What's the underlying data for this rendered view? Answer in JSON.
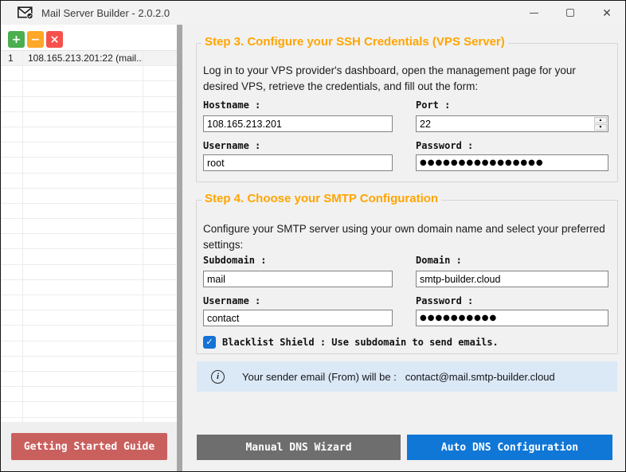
{
  "window": {
    "title": "Mail Server Builder - 2.0.2.0",
    "controls": {
      "minimize_glyph": "",
      "close_glyph": "✕"
    }
  },
  "server_list": {
    "toolbar": {
      "add_label": "+",
      "remove_label": "−",
      "delete_label": "×"
    },
    "selected_row": {
      "index": "1",
      "label": "108.165.213.201:22 (mail...."
    },
    "empty_row_count": 24
  },
  "guide_button_label": "Getting Started Guide",
  "step3": {
    "title": "Step 3. Configure your SSH Credentials (VPS Server)",
    "description": "Log in to your VPS provider's dashboard, open the management page for your desired VPS, retrieve the credentials, and fill out the form:",
    "hostname_label": "Hostname :",
    "hostname_value": "108.165.213.201",
    "port_label": "Port :",
    "port_value": "22",
    "username_label": "Username :",
    "username_value": "root",
    "password_label": "Password :",
    "password_masked": "●●●●●●●●●●●●●●●●",
    "spinner_up": "▲",
    "spinner_down": "▼"
  },
  "step4": {
    "title": "Step 4. Choose your SMTP Configuration",
    "description": "Configure your SMTP server using your own domain name and select your preferred settings:",
    "subdomain_label": "Subdomain :",
    "subdomain_value": "mail",
    "domain_label": "Domain :",
    "domain_value": "smtp-builder.cloud",
    "username_label": "Username :",
    "username_value": "contact",
    "password_label": "Password :",
    "password_masked": "●●●●●●●●●●",
    "blacklist_checked": "✓",
    "blacklist_label": "Blacklist Shield : Use subdomain to send emails."
  },
  "info_bar": {
    "icon_glyph": "i",
    "text": "Your sender email (From) will be :   contact@mail.smtp-builder.cloud"
  },
  "actions": {
    "manual_label": "Manual DNS Wizard",
    "auto_label": "Auto DNS Configuration"
  },
  "colors": {
    "accent_orange": "#FFA500",
    "toolbar_green": "#4BAE4F",
    "toolbar_amber": "#FFA726",
    "toolbar_red": "#F6514B",
    "guide_button_red": "#C9605E",
    "manual_button_gray": "#6E6E6E",
    "auto_button_blue": "#1077D6",
    "checkbox_blue": "#1573D6",
    "info_bar_bg": "#DBE8F6"
  }
}
